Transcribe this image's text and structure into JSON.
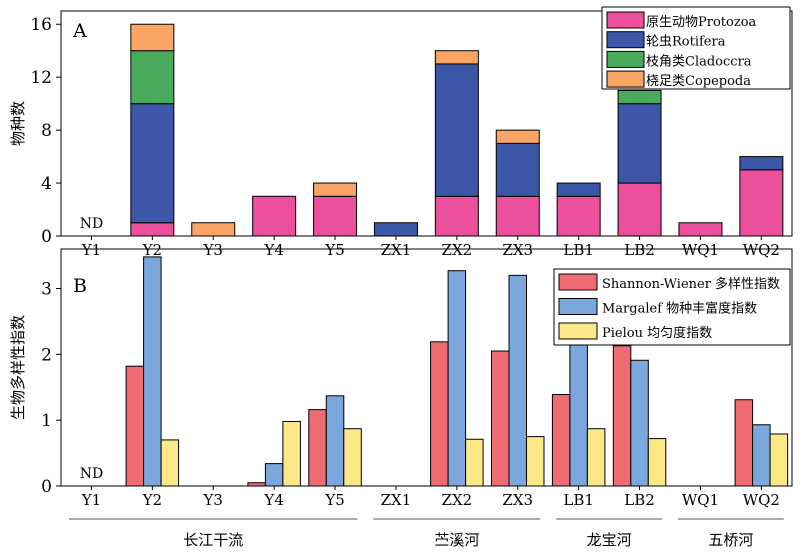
{
  "chart_data": [
    {
      "type": "bar",
      "stacked": true,
      "panel_label": "A",
      "ylabel": "物种数",
      "ylim": [
        0,
        17
      ],
      "yticks": [
        0,
        4,
        8,
        12,
        16
      ],
      "categories": [
        "Y1",
        "Y2",
        "Y3",
        "Y4",
        "Y5",
        "ZX1",
        "ZX2",
        "ZX3",
        "LB1",
        "LB2",
        "WQ1",
        "WQ2"
      ],
      "annotations": [
        {
          "category": "Y1",
          "text": "ND"
        }
      ],
      "legend_position": "top-right",
      "series": [
        {
          "name": "原生动物Protozoa",
          "color": "#ec4f9b",
          "values": [
            0,
            1,
            0,
            3,
            3,
            0,
            3,
            3,
            3,
            4,
            1,
            5
          ]
        },
        {
          "name": "轮虫Rotifera",
          "color": "#3c57a8",
          "values": [
            0,
            9,
            0,
            0,
            0,
            1,
            10,
            4,
            1,
            6,
            0,
            1
          ]
        },
        {
          "name": "枝角类Cladoccra",
          "color": "#4aaa5c",
          "values": [
            0,
            4,
            0,
            0,
            0,
            0,
            0,
            0,
            0,
            1,
            0,
            0
          ]
        },
        {
          "name": "桡足类Copepoda",
          "color": "#f9a566",
          "values": [
            0,
            2,
            1,
            0,
            1,
            0,
            1,
            1,
            0,
            0,
            0,
            0
          ]
        }
      ]
    },
    {
      "type": "bar",
      "stacked": false,
      "panel_label": "B",
      "ylabel": "生物多样性指数",
      "ylim": [
        0,
        3.6
      ],
      "yticks": [
        0,
        1,
        2,
        3
      ],
      "categories": [
        "Y1",
        "Y2",
        "Y3",
        "Y4",
        "Y5",
        "ZX1",
        "ZX2",
        "ZX3",
        "LB1",
        "LB2",
        "WQ1",
        "WQ2"
      ],
      "annotations": [
        {
          "category": "Y1",
          "text": "ND"
        }
      ],
      "legend_position": "top-right",
      "series": [
        {
          "name": "Shannon-Wiener 多样性指数",
          "color": "#ef6b72",
          "values": [
            0,
            1.82,
            0,
            0.05,
            1.16,
            0,
            2.19,
            2.05,
            1.39,
            2.13,
            0,
            1.31
          ]
        },
        {
          "name": "Margalef 物种丰富度指数",
          "color": "#7ba7dd",
          "values": [
            0,
            3.48,
            0,
            0.34,
            1.37,
            0,
            3.27,
            3.2,
            2.17,
            1.91,
            0,
            0.93
          ]
        },
        {
          "name": "Pielou 均匀度指数",
          "color": "#fde887",
          "values": [
            0,
            0.7,
            0,
            0.98,
            0.87,
            0,
            0.71,
            0.75,
            0.87,
            0.72,
            0,
            0.79
          ]
        }
      ]
    }
  ],
  "groups": [
    {
      "label": "长江干流",
      "first": "Y1",
      "last": "Y5"
    },
    {
      "label": "苎溪河",
      "first": "ZX1",
      "last": "ZX3"
    },
    {
      "label": "龙宝河",
      "first": "LB1",
      "last": "LB2"
    },
    {
      "label": "五桥河",
      "first": "WQ1",
      "last": "WQ2"
    }
  ]
}
